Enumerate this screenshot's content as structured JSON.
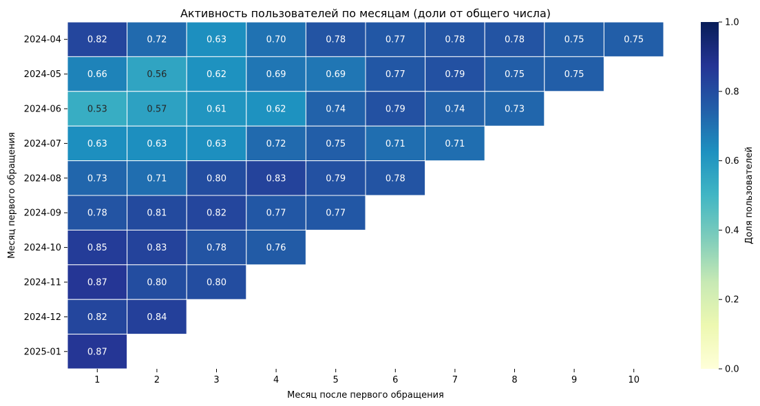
{
  "chart_data": {
    "type": "heatmap",
    "title": "Активность пользователей по месяцам (доли от общего числа)",
    "xlabel": "Месяц после первого обращения",
    "ylabel": "Месяц первого обращения",
    "x": [
      "1",
      "2",
      "3",
      "4",
      "5",
      "6",
      "7",
      "8",
      "9",
      "10"
    ],
    "y": [
      "2024-04",
      "2024-05",
      "2024-06",
      "2024-07",
      "2024-08",
      "2024-09",
      "2024-10",
      "2024-11",
      "2024-12",
      "2025-01"
    ],
    "values": [
      [
        0.82,
        0.72,
        0.63,
        0.7,
        0.78,
        0.77,
        0.78,
        0.78,
        0.75,
        0.75
      ],
      [
        0.66,
        0.56,
        0.62,
        0.69,
        0.69,
        0.77,
        0.79,
        0.75,
        0.75,
        null
      ],
      [
        0.53,
        0.57,
        0.61,
        0.62,
        0.74,
        0.79,
        0.74,
        0.73,
        null,
        null
      ],
      [
        0.63,
        0.63,
        0.63,
        0.72,
        0.75,
        0.71,
        0.71,
        null,
        null,
        null
      ],
      [
        0.73,
        0.71,
        0.8,
        0.83,
        0.79,
        0.78,
        null,
        null,
        null,
        null
      ],
      [
        0.78,
        0.81,
        0.82,
        0.77,
        0.77,
        null,
        null,
        null,
        null,
        null
      ],
      [
        0.85,
        0.83,
        0.78,
        0.76,
        null,
        null,
        null,
        null,
        null,
        null
      ],
      [
        0.87,
        0.8,
        0.8,
        null,
        null,
        null,
        null,
        null,
        null,
        null
      ],
      [
        0.82,
        0.84,
        null,
        null,
        null,
        null,
        null,
        null,
        null,
        null
      ],
      [
        0.87,
        null,
        null,
        null,
        null,
        null,
        null,
        null,
        null,
        null
      ]
    ],
    "value_format": "0.00",
    "colorbar": {
      "label": "Доля пользователей",
      "min": 0.0,
      "max": 1.0,
      "ticks": [
        "0.0",
        "0.2",
        "0.4",
        "0.6",
        "0.8",
        "1.0"
      ],
      "colormap": "YlGnBu"
    },
    "grid": false,
    "cell_border_color": "#ffffff"
  }
}
